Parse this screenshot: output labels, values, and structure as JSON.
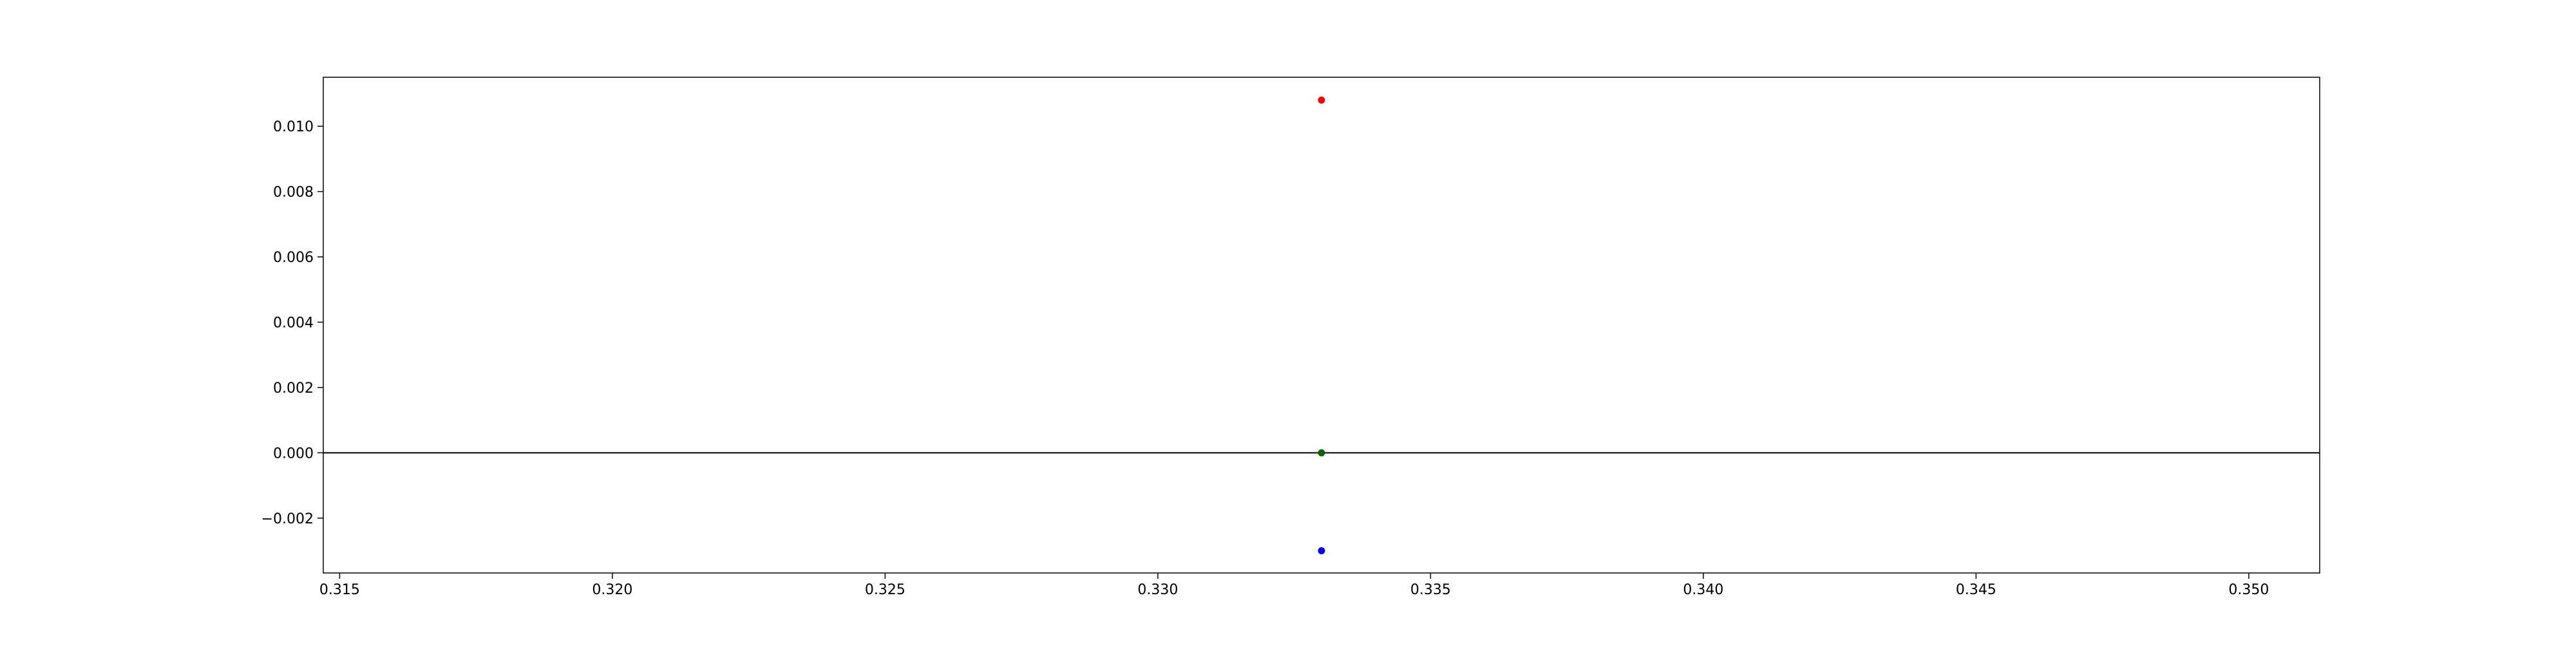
{
  "chart_data": {
    "type": "scatter",
    "title": "",
    "xlabel": "",
    "ylabel": "",
    "xlim": [
      0.3147,
      0.3513
    ],
    "ylim": [
      -0.00368,
      0.0115
    ],
    "x_ticks": [
      0.315,
      0.32,
      0.325,
      0.33,
      0.335,
      0.34,
      0.345,
      0.35
    ],
    "x_tick_labels": [
      "0.315",
      "0.320",
      "0.325",
      "0.330",
      "0.335",
      "0.340",
      "0.345",
      "0.350"
    ],
    "y_ticks": [
      -0.002,
      0.0,
      0.002,
      0.004,
      0.006,
      0.008,
      0.01
    ],
    "y_tick_labels": [
      "−0.002",
      "0.000",
      "0.002",
      "0.004",
      "0.006",
      "0.008",
      "0.010"
    ],
    "grid": false,
    "reference_lines": [
      {
        "orientation": "horizontal",
        "y": 0.0,
        "color": "#000000"
      }
    ],
    "points": [
      {
        "x": 0.333,
        "y": 0.0108,
        "color": "#ff0000"
      },
      {
        "x": 0.333,
        "y": 0.0,
        "color": "#006400"
      },
      {
        "x": 0.333,
        "y": -0.003,
        "color": "#0000ff"
      }
    ]
  }
}
